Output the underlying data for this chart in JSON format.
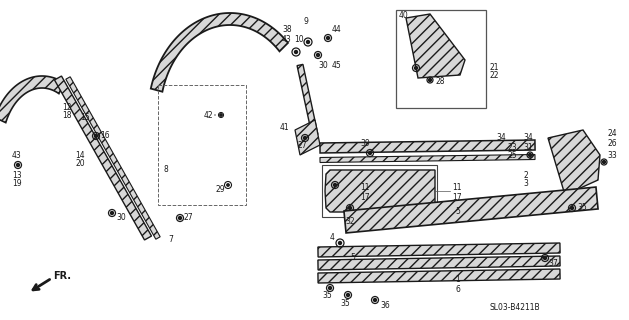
{
  "bg_color": "#ffffff",
  "diagram_code": "SL03-B4211B",
  "fig_width": 6.29,
  "fig_height": 3.2,
  "dpi": 100
}
